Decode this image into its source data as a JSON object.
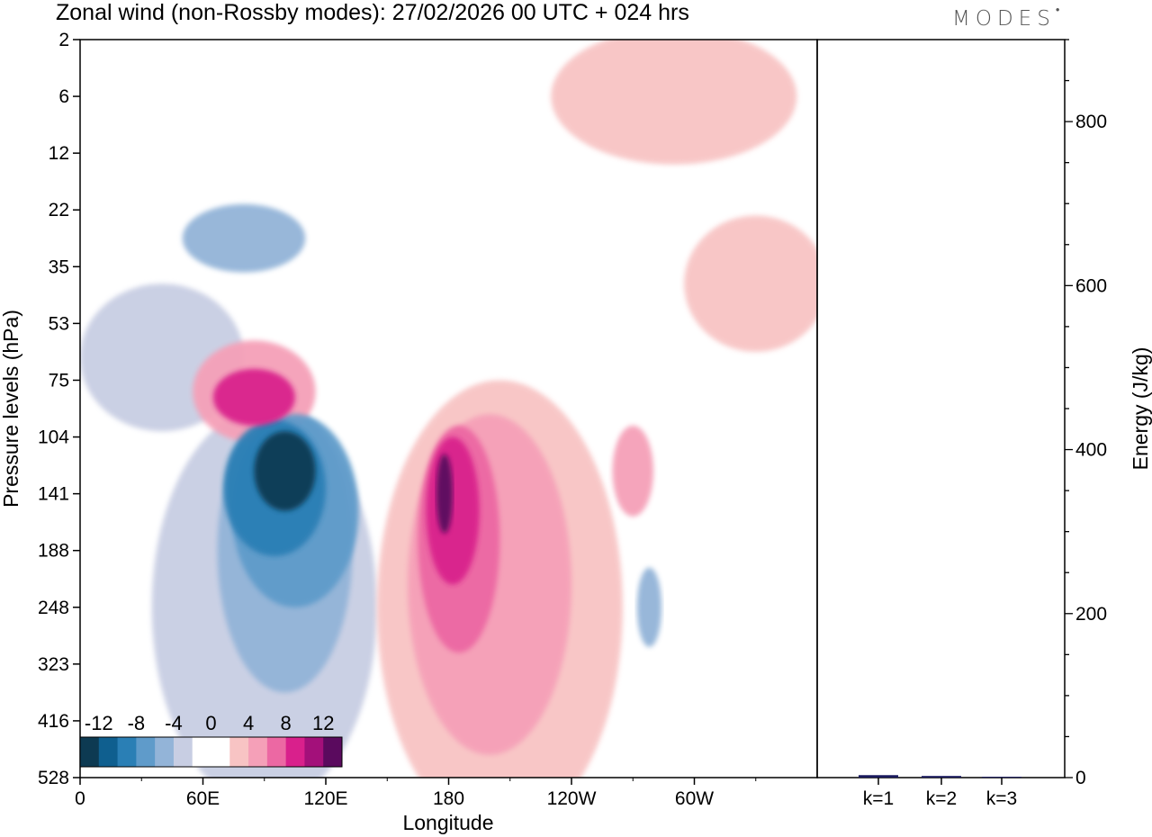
{
  "header": {
    "title": "Zonal wind (non-Rossby modes):  27/02/2026  00 UTC  + 024 hrs",
    "logo": "MODES"
  },
  "chart_data": [
    {
      "type": "heatmap",
      "title": "Zonal wind (non-Rossby modes):  27/02/2026  00 UTC  + 024 hrs",
      "xlabel": "Longitude",
      "ylabel": "Pressure levels (hPa)",
      "x_ticks": [
        "0",
        "60E",
        "120E",
        "180",
        "120W",
        "60W"
      ],
      "y_ticks": [
        "2",
        "6",
        "12",
        "22",
        "35",
        "53",
        "75",
        "104",
        "141",
        "188",
        "248",
        "323",
        "416",
        "528"
      ],
      "colorbar": {
        "tick_labels": [
          "-12",
          "-8",
          "-4",
          "0",
          "4",
          "8",
          "12"
        ],
        "colors": [
          "#0d3a52",
          "#0f5f8f",
          "#2a7fb5",
          "#5f9bca",
          "#93b4d8",
          "#c8cee3",
          "#ffffff",
          "#ffffff",
          "#f8c4c4",
          "#f5a0b8",
          "#ec68a3",
          "#d9208c",
          "#a3107a",
          "#5a0a5e"
        ]
      },
      "features": [
        {
          "sign": "negative",
          "level": -12,
          "lon": 100,
          "lev_index": 7.6,
          "lon_width": 30,
          "lev_height": 1.4
        },
        {
          "sign": "negative",
          "level": -8,
          "lon": 95,
          "lev_index": 7.9,
          "lon_width": 50,
          "lev_height": 2.4
        },
        {
          "sign": "negative",
          "level": -6,
          "lon": 105,
          "lev_index": 8.3,
          "lon_width": 62,
          "lev_height": 3.4
        },
        {
          "sign": "negative",
          "level": -4,
          "lon": 100,
          "lev_index": 9.0,
          "lon_width": 66,
          "lev_height": 5.0
        },
        {
          "sign": "negative",
          "level": -2,
          "lon": 90,
          "lev_index": 10.0,
          "lon_width": 110,
          "lev_height": 7.0
        },
        {
          "sign": "positive",
          "level": 12,
          "lon": 178,
          "lev_index": 8.0,
          "lon_width": 8,
          "lev_height": 1.4
        },
        {
          "sign": "positive",
          "level": 8,
          "lon": 182,
          "lev_index": 8.3,
          "lon_width": 26,
          "lev_height": 2.6
        },
        {
          "sign": "positive",
          "level": 6,
          "lon": 185,
          "lev_index": 8.8,
          "lon_width": 40,
          "lev_height": 4.0
        },
        {
          "sign": "positive",
          "level": 4,
          "lon": 200,
          "lev_index": 9.6,
          "lon_width": 80,
          "lev_height": 6.0
        },
        {
          "sign": "positive",
          "level": 2,
          "lon": 205,
          "lev_index": 10.0,
          "lon_width": 120,
          "lev_height": 8.0
        },
        {
          "sign": "positive",
          "level": 8,
          "lon": 85,
          "lev_index": 6.3,
          "lon_width": 40,
          "lev_height": 1.0
        },
        {
          "sign": "positive",
          "level": 4,
          "lon": 85,
          "lev_index": 6.2,
          "lon_width": 60,
          "lev_height": 1.8
        },
        {
          "sign": "negative",
          "level": -2,
          "lon": 40,
          "lev_index": 5.6,
          "lon_width": 80,
          "lev_height": 2.6
        },
        {
          "sign": "negative",
          "level": -4,
          "lon": 80,
          "lev_index": 3.5,
          "lon_width": 60,
          "lev_height": 1.2
        },
        {
          "sign": "positive",
          "level": 2,
          "lon": 330,
          "lev_index": 4.3,
          "lon_width": 70,
          "lev_height": 2.4
        },
        {
          "sign": "negative",
          "level": -4,
          "lon": 278,
          "lev_index": 10.0,
          "lon_width": 12,
          "lev_height": 1.4
        },
        {
          "sign": "positive",
          "level": 2,
          "lon": 290,
          "lev_index": 1.0,
          "lon_width": 120,
          "lev_height": 2.4
        },
        {
          "sign": "positive",
          "level": 4,
          "lon": 270,
          "lev_index": 7.6,
          "lon_width": 20,
          "lev_height": 1.6
        }
      ]
    },
    {
      "type": "bar",
      "categories": [
        "k=1",
        "k=2",
        "k=3"
      ],
      "values": [
        3,
        2,
        1
      ],
      "ylabel": "Energy (J/kg)",
      "ylim": [
        0,
        900
      ],
      "y_ticks": [
        0,
        200,
        400,
        600,
        800
      ],
      "bar_color": "#1a1a5e"
    }
  ]
}
